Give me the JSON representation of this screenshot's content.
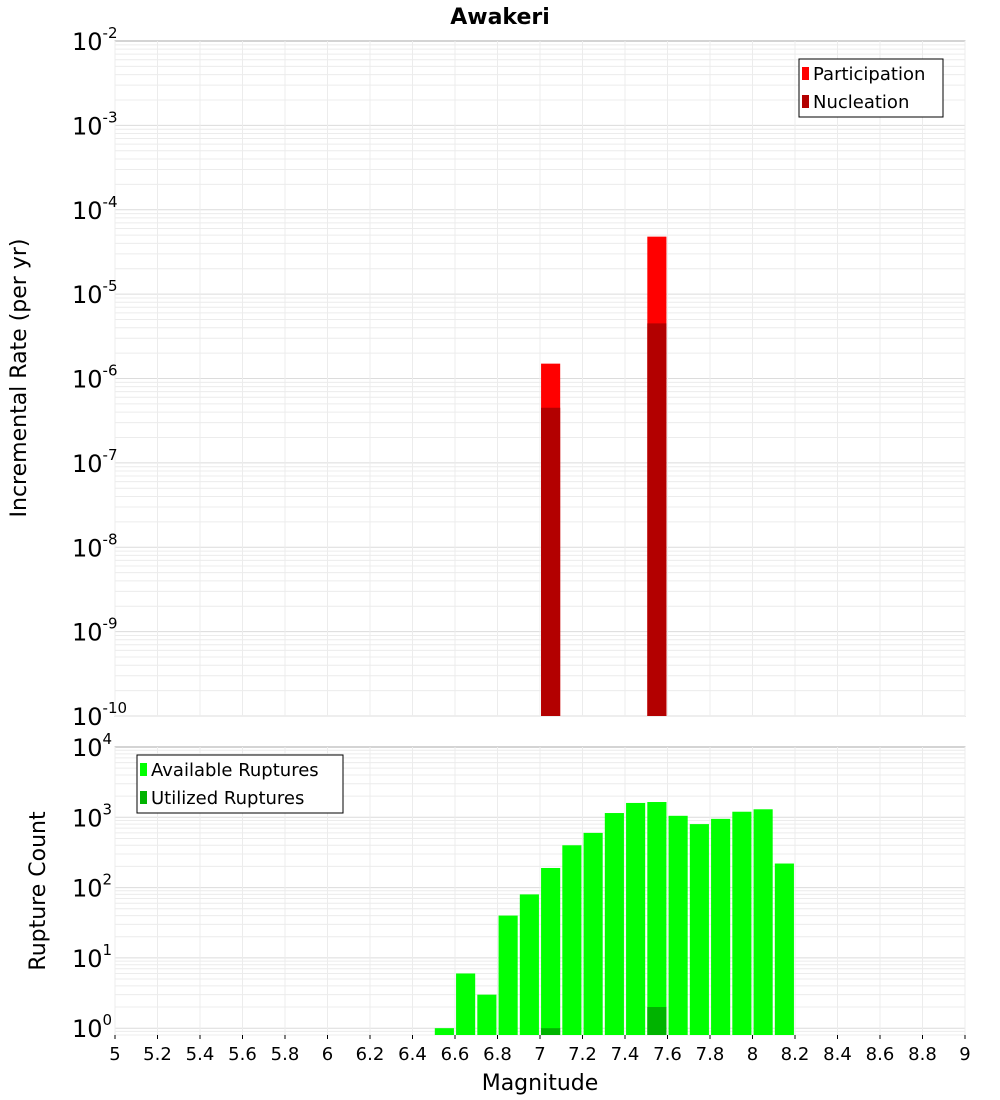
{
  "figure": {
    "title": "Awakeri",
    "xlabel": "Magnitude"
  },
  "chart_data": [
    {
      "type": "bar",
      "title": "Awakeri",
      "xlabel": "Magnitude",
      "ylabel": "Incremental Rate (per yr)",
      "yscale": "log",
      "xlim": [
        5,
        9
      ],
      "ylim": [
        1e-10,
        0.01
      ],
      "grid": true,
      "legend_position": "top-right",
      "series": [
        {
          "name": "Participation",
          "color": "#ff0000",
          "x": [
            7.05,
            7.55
          ],
          "values": [
            1.5e-06,
            4.8e-05
          ]
        },
        {
          "name": "Nucleation",
          "color": "#b30000",
          "x": [
            7.05,
            7.55
          ],
          "values": [
            4.5e-07,
            4.5e-06
          ]
        }
      ],
      "y_ticks": [
        {
          "base": "10",
          "exp": "-10"
        },
        {
          "base": "10",
          "exp": "-9"
        },
        {
          "base": "10",
          "exp": "-8"
        },
        {
          "base": "10",
          "exp": "-7"
        },
        {
          "base": "10",
          "exp": "-6"
        },
        {
          "base": "10",
          "exp": "-5"
        },
        {
          "base": "10",
          "exp": "-4"
        },
        {
          "base": "10",
          "exp": "-3"
        },
        {
          "base": "10",
          "exp": "-2"
        }
      ]
    },
    {
      "type": "bar",
      "xlabel": "Magnitude",
      "ylabel": "Rupture Count",
      "yscale": "log",
      "xlim": [
        5,
        9
      ],
      "ylim": [
        0.8,
        10000
      ],
      "grid": true,
      "legend_position": "top-left",
      "series": [
        {
          "name": "Available Ruptures",
          "color": "#00ff00",
          "x": [
            6.55,
            6.65,
            6.75,
            6.85,
            6.95,
            7.05,
            7.15,
            7.25,
            7.35,
            7.45,
            7.55,
            7.65,
            7.75,
            7.85,
            7.95,
            8.05,
            8.15
          ],
          "values": [
            1,
            6,
            3,
            40,
            80,
            190,
            400,
            600,
            1150,
            1600,
            1650,
            1050,
            800,
            950,
            1200,
            1300,
            220
          ]
        },
        {
          "name": "Utilized Ruptures",
          "color": "#00b300",
          "x": [
            7.05,
            7.55
          ],
          "values": [
            1,
            2
          ]
        }
      ],
      "y_ticks": [
        {
          "base": "10",
          "exp": "0"
        },
        {
          "base": "10",
          "exp": "1"
        },
        {
          "base": "10",
          "exp": "2"
        },
        {
          "base": "10",
          "exp": "3"
        },
        {
          "base": "10",
          "exp": "4"
        }
      ],
      "x_ticks": [
        "5",
        "5.2",
        "5.4",
        "5.6",
        "5.8",
        "6",
        "6.2",
        "6.4",
        "6.6",
        "6.8",
        "7",
        "7.2",
        "7.4",
        "7.6",
        "7.8",
        "8",
        "8.2",
        "8.4",
        "8.6",
        "8.8",
        "9"
      ]
    }
  ]
}
